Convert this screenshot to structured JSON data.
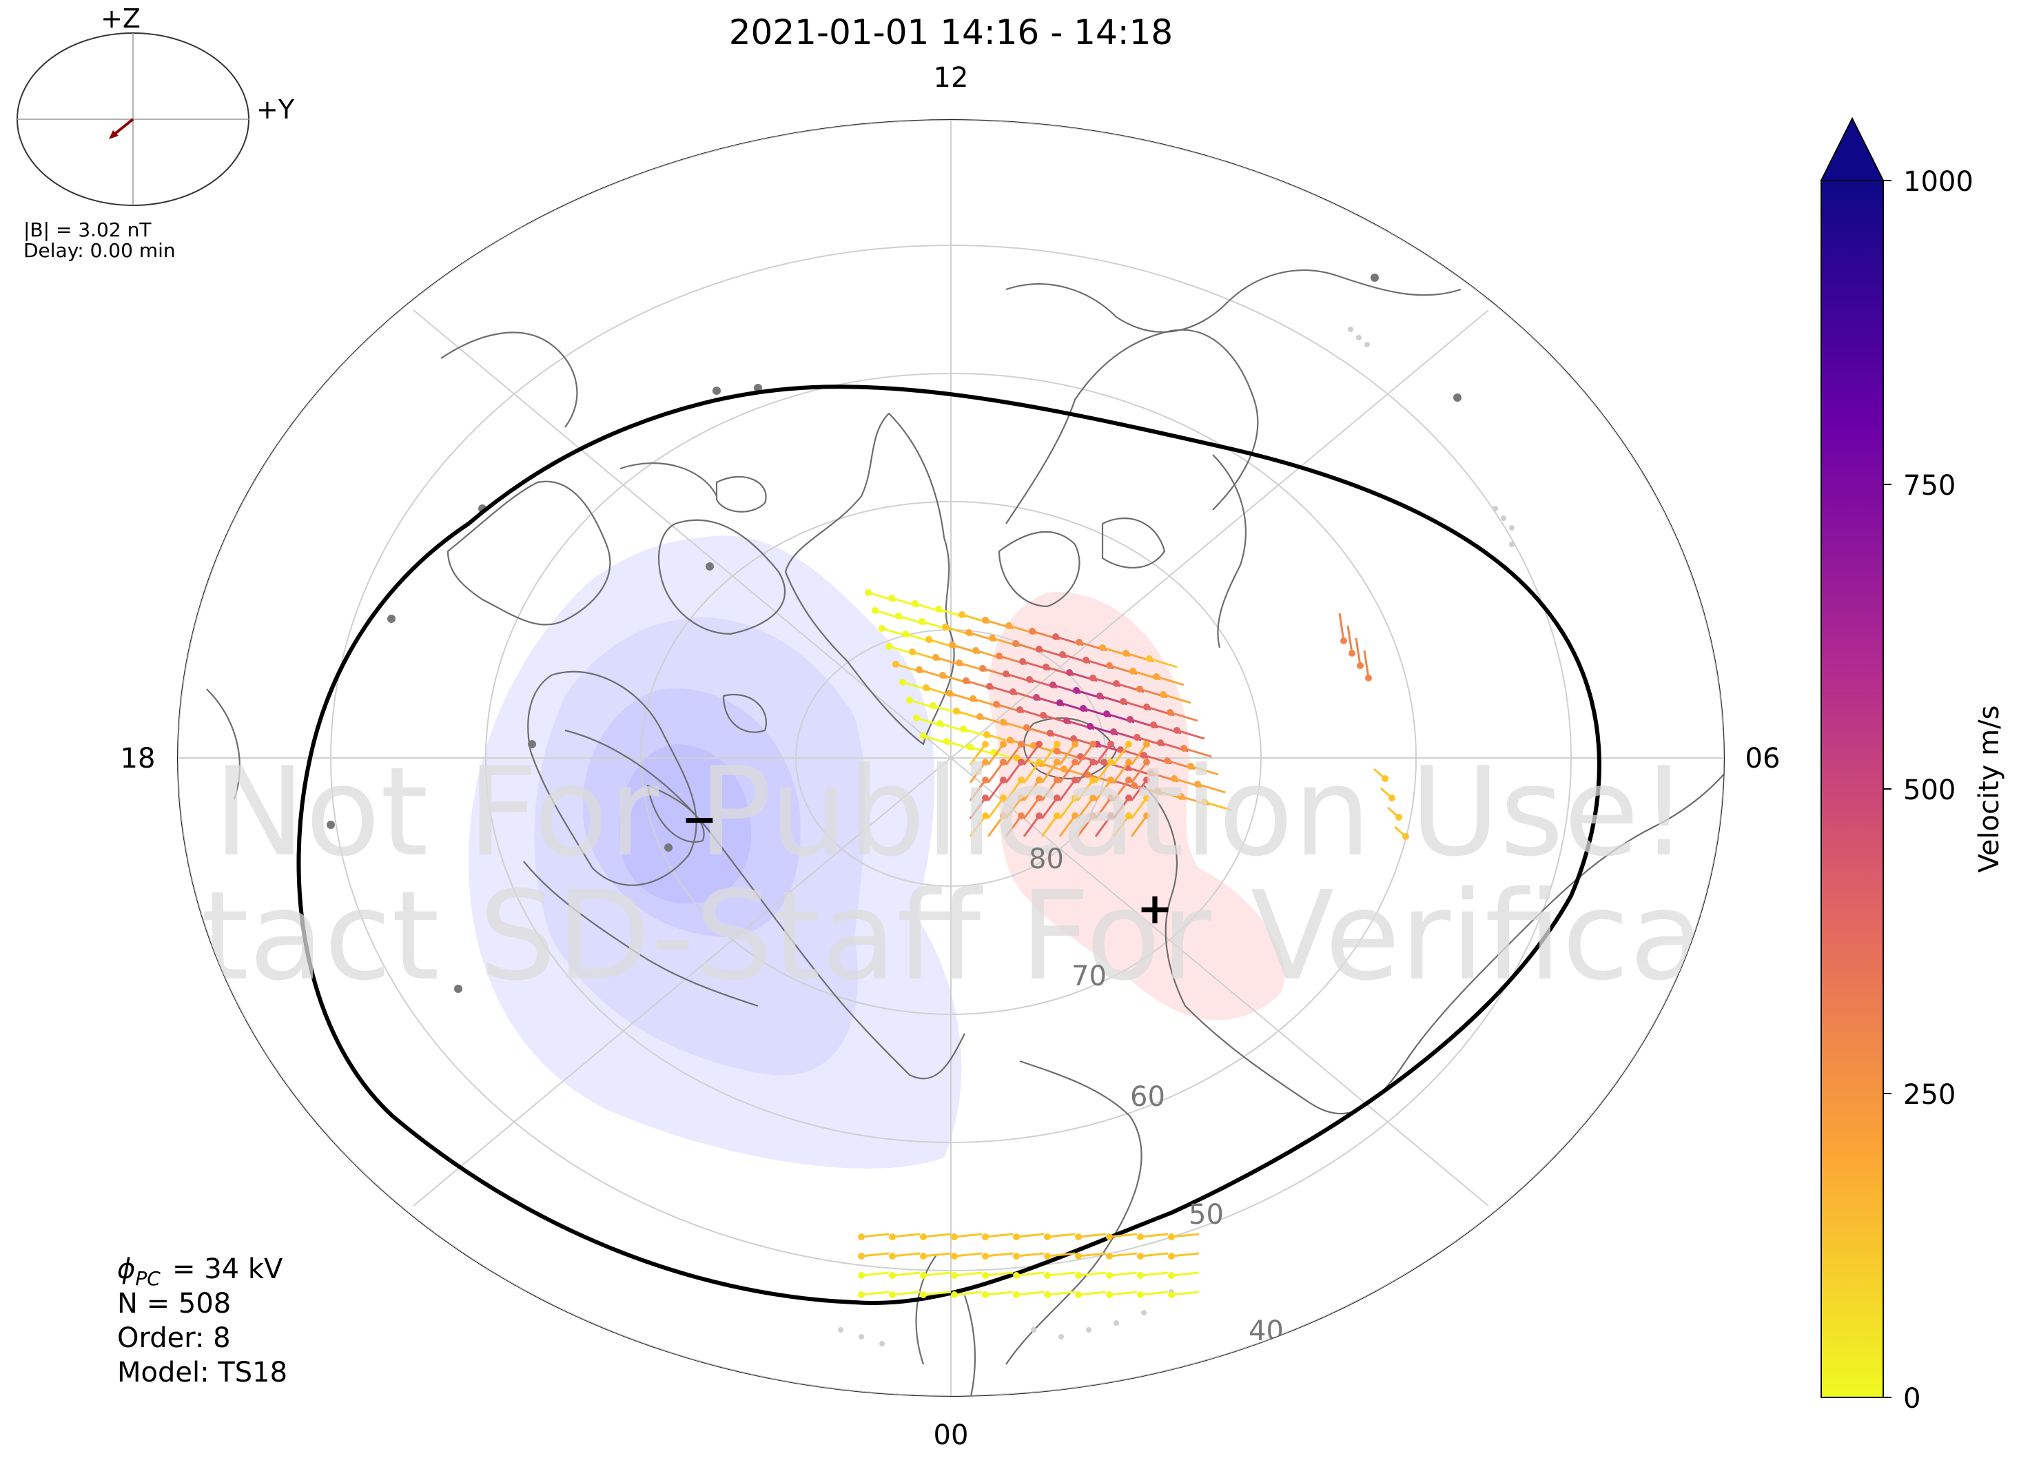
{
  "title": "2021-01-01 14:16 - 14:18",
  "mlt_labels": {
    "top": "12",
    "bottom": "00",
    "left": "18",
    "right": "06"
  },
  "lat_labels": [
    "80",
    "70",
    "60",
    "50",
    "40"
  ],
  "imf_dial": {
    "z_label": "+Z",
    "y_label": "+Y",
    "b_text": "|B| = 3.02 nT",
    "delay_text": "Delay: 0.00 min",
    "arrow_color": "#8b0000"
  },
  "info": {
    "phi_pc": "= 34 kV",
    "n": "N = 508",
    "order": "Order: 8",
    "model": "Model: TS18"
  },
  "markers": {
    "minus": "−",
    "plus": "+"
  },
  "watermark": {
    "line1": "Not For Publication Use!",
    "line2": "Contact SD-Staff For Verification"
  },
  "colorbar": {
    "label": "Velocity m/s",
    "ticks": [
      "1000",
      "750",
      "500",
      "250",
      "0"
    ],
    "stops": [
      "#0d0887",
      "#6a00a8",
      "#b12a90",
      "#e16462",
      "#fca636",
      "#f0f921"
    ]
  },
  "colors": {
    "negative_cell": "#7b7bff",
    "positive_cell": "#ff9a9a",
    "boundary": "#000000",
    "grid": "#cfcfcf",
    "coast": "#6d6d6d"
  }
}
